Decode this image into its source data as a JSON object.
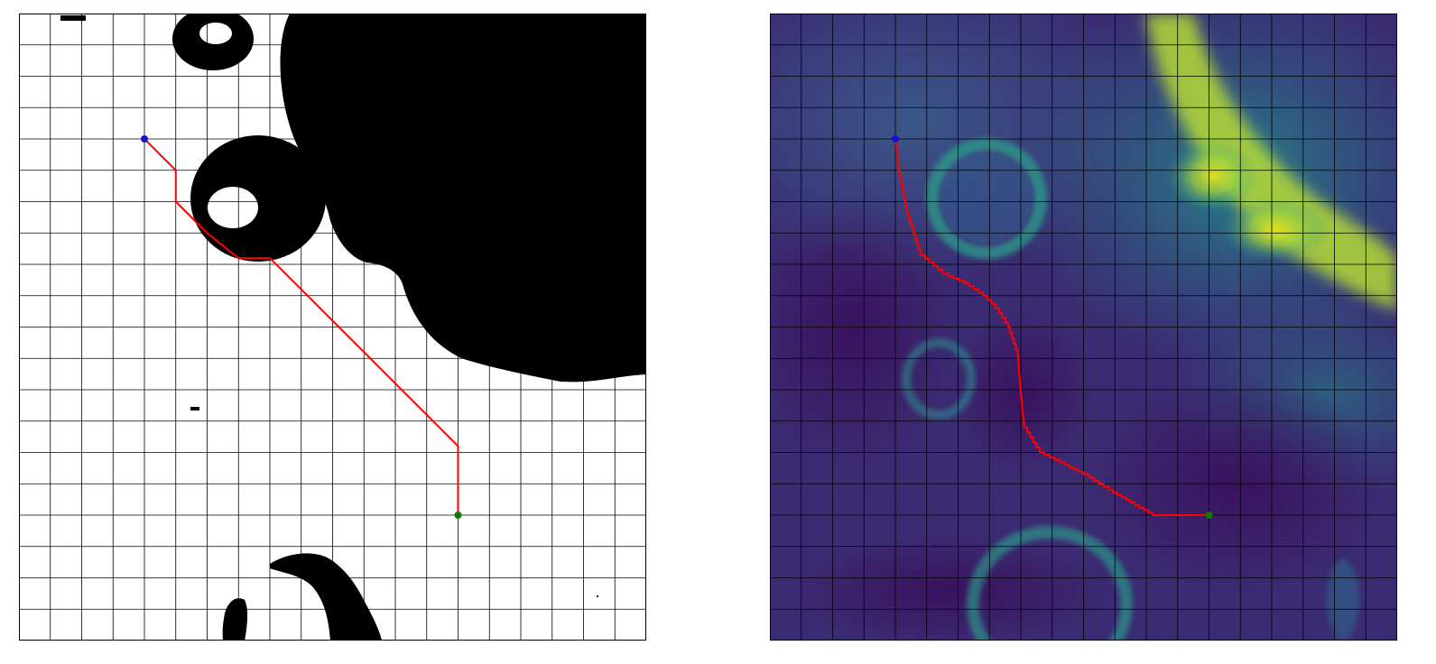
{
  "panels": [
    {
      "id": "left",
      "kind": "binary-obstacle-map",
      "colors": {
        "free": "#ffffff",
        "obstacle": "#000000",
        "grid": "#000000",
        "path": "#ff0000",
        "start": "#1a10c8",
        "goal": "#0b7a0b"
      },
      "grid": {
        "columns": 20,
        "rows": 20
      },
      "start": [
        4,
        4
      ],
      "goal": [
        14,
        16
      ],
      "path_cells": [
        [
          4,
          4
        ],
        [
          5,
          5
        ],
        [
          5,
          6
        ],
        [
          6,
          7
        ],
        [
          7,
          7.8
        ],
        [
          8,
          7.8
        ],
        [
          9,
          8.8
        ],
        [
          10,
          9.8
        ],
        [
          11,
          10.8
        ],
        [
          12,
          11.8
        ],
        [
          13,
          12.8
        ],
        [
          14,
          13.8
        ],
        [
          14,
          16
        ]
      ]
    },
    {
      "id": "right",
      "kind": "cost-heatmap",
      "colormap": "viridis",
      "colors": {
        "grid": "#000000",
        "path": "#ff0000",
        "start": "#1a10c8",
        "goal": "#0b7a0b"
      },
      "grid": {
        "columns": 20,
        "rows": 20
      },
      "start": [
        4,
        4
      ],
      "goal": [
        14,
        16
      ],
      "path_cells": [
        [
          4,
          4
        ],
        [
          4.1,
          5
        ],
        [
          4.4,
          6.5
        ],
        [
          4.8,
          7.7
        ],
        [
          5.5,
          8.3
        ],
        [
          6.2,
          8.6
        ],
        [
          6.8,
          9
        ],
        [
          7.2,
          9.4
        ],
        [
          7.6,
          10
        ],
        [
          7.9,
          10.9
        ],
        [
          8,
          12.2
        ],
        [
          8.1,
          13.2
        ],
        [
          8.6,
          14
        ],
        [
          9.4,
          14.4
        ],
        [
          10,
          14.7
        ],
        [
          10.8,
          15.2
        ],
        [
          11.5,
          15.6
        ],
        [
          12.2,
          16
        ],
        [
          13.3,
          16
        ],
        [
          14,
          16
        ]
      ]
    }
  ]
}
